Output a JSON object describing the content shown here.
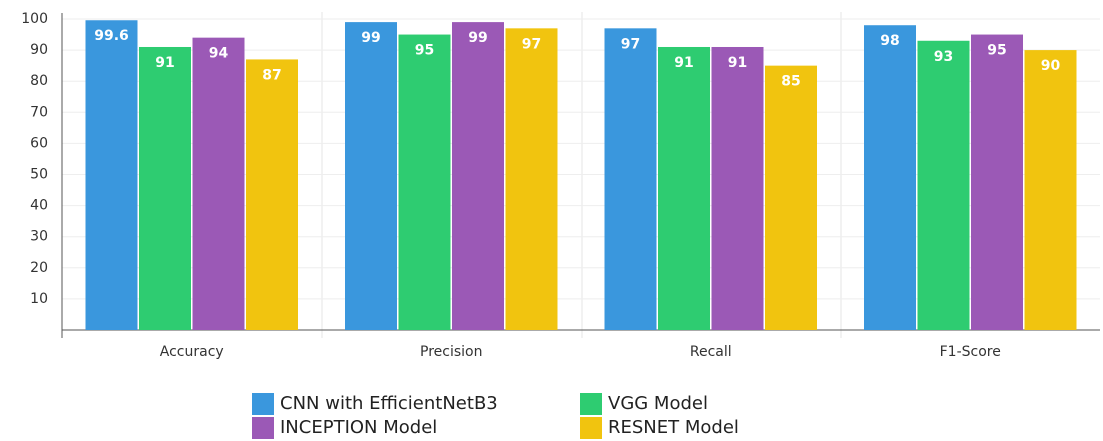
{
  "chart_data": {
    "type": "bar",
    "categories": [
      "Accuracy",
      "Precision",
      "Recall",
      "F1-Score"
    ],
    "series": [
      {
        "name": "CNN with EfficientNetB3",
        "color": "#3a97dd",
        "values": [
          99.6,
          99,
          97,
          98
        ]
      },
      {
        "name": "VGG Model",
        "color": "#2ecc71",
        "values": [
          91,
          95,
          91,
          93
        ]
      },
      {
        "name": "INCEPTION Model",
        "color": "#9b59b6",
        "values": [
          94,
          99,
          91,
          95
        ]
      },
      {
        "name": "RESNET Model",
        "color": "#f1c40f",
        "values": [
          87,
          97,
          85,
          90
        ]
      }
    ],
    "ylim": [
      0,
      100
    ],
    "yticks": [
      10,
      20,
      30,
      40,
      50,
      60,
      70,
      80,
      90,
      100
    ],
    "grid": true
  }
}
